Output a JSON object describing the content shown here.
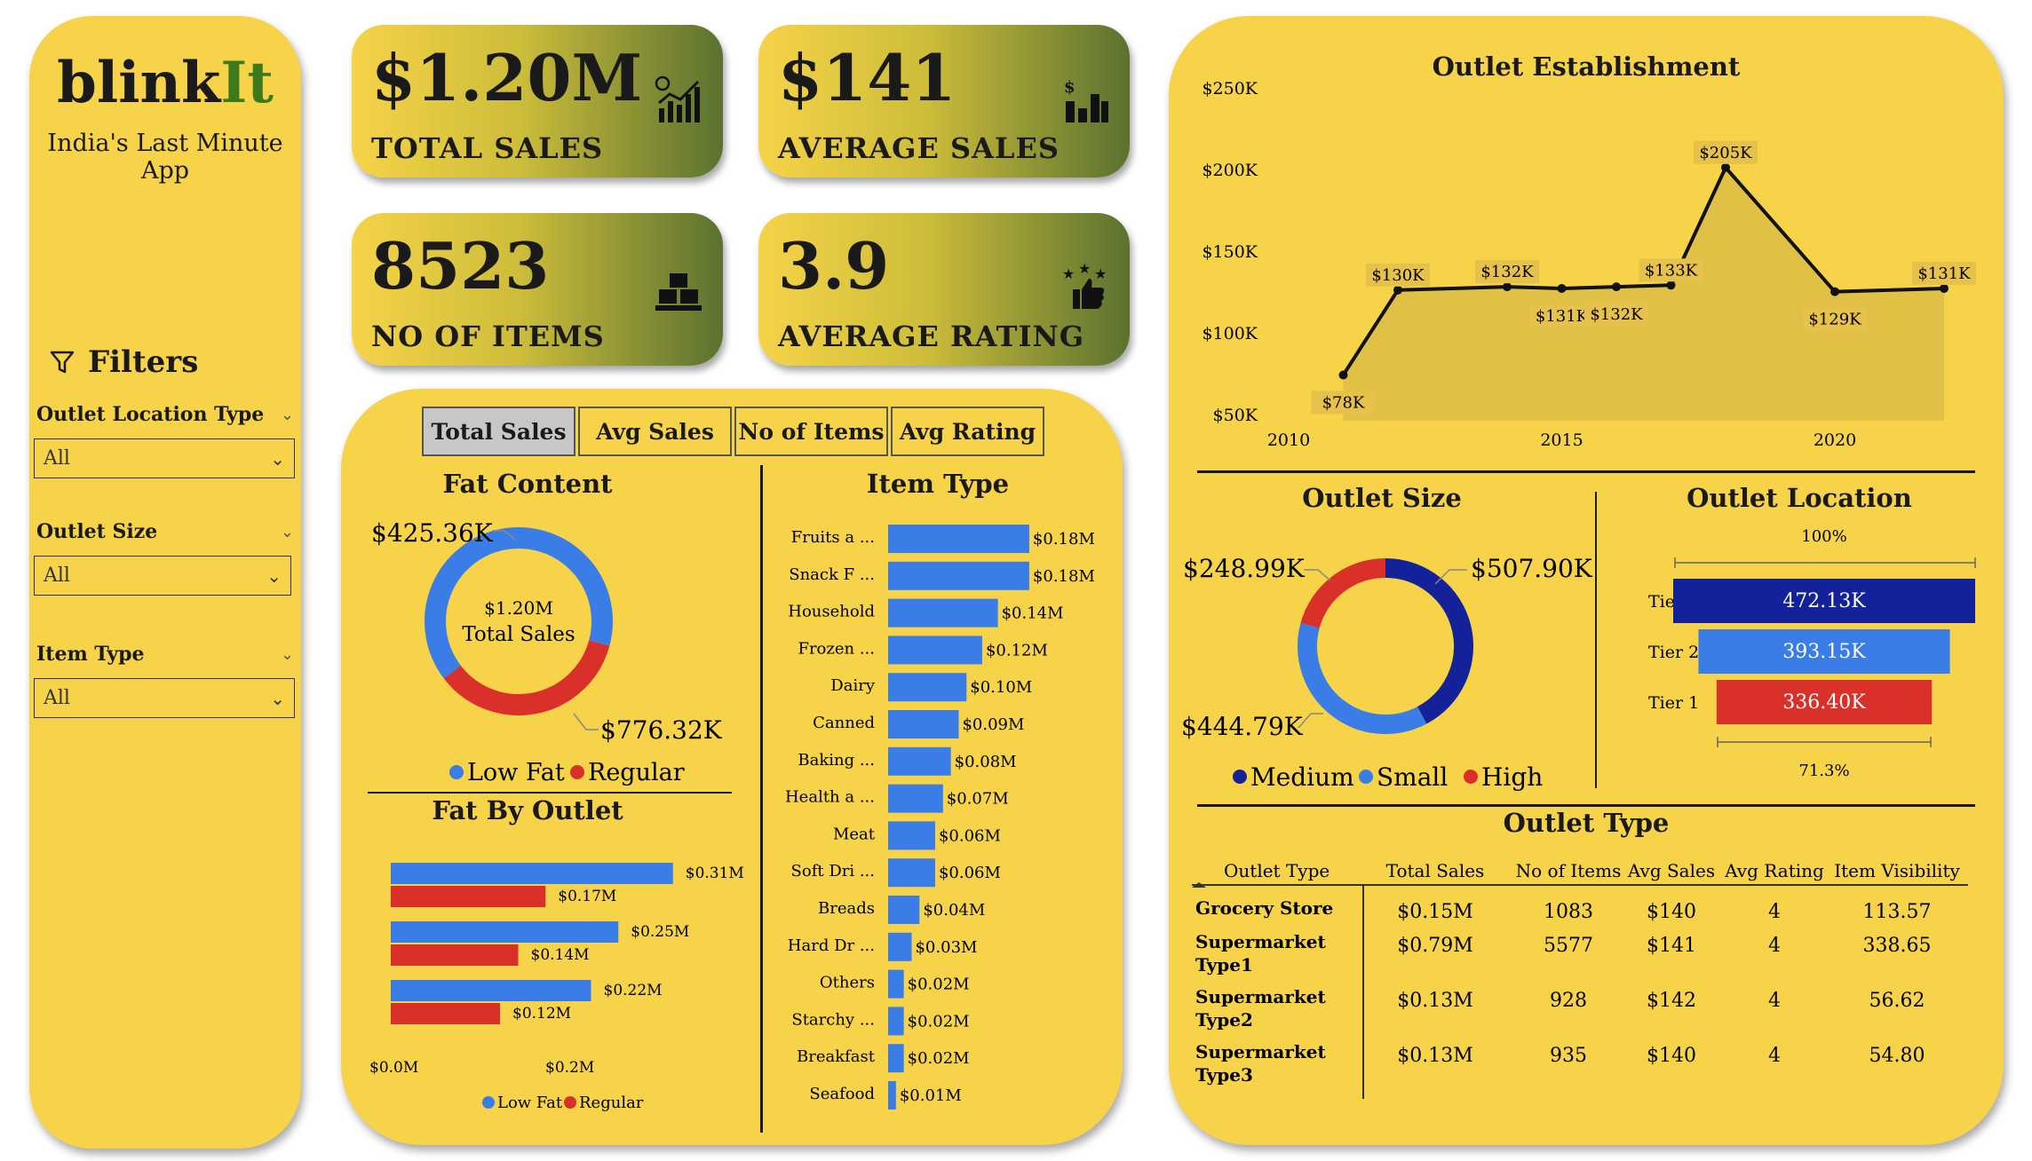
{
  "brand": {
    "name_main": "blink",
    "name_accent": "It",
    "tagline": "India's Last Minute App"
  },
  "filters": {
    "title": "Filters",
    "items": [
      {
        "label": "Outlet Location Type",
        "value": "All"
      },
      {
        "label": "Outlet Size",
        "value": "All"
      },
      {
        "label": "Item Type",
        "value": "All"
      }
    ]
  },
  "kpis": [
    {
      "value": "$1.20M",
      "label": "TOTAL SALES",
      "icon": "sales-chart-icon"
    },
    {
      "value": "$141",
      "label": "AVERAGE SALES",
      "icon": "bar-chart-dollar-icon"
    },
    {
      "value": "8523",
      "label": "NO OF ITEMS",
      "icon": "boxes-icon"
    },
    {
      "value": "3.9",
      "label": "AVERAGE RATING",
      "icon": "rating-thumb-icon"
    }
  ],
  "tabs": [
    "Total Sales",
    "Avg Sales",
    "No of Items",
    "Avg Rating"
  ],
  "active_tab": "Total Sales",
  "colors": {
    "panel": "#f6d348",
    "blue": "#3a7de6",
    "red": "#d9302a",
    "navy": "#14229a",
    "green": "#3d7a1c"
  },
  "chart_data": [
    {
      "id": "fat-content",
      "type": "pie",
      "title": "Fat Content",
      "center_value": "$1.20M",
      "center_label": "Total Sales",
      "slices": [
        {
          "name": "Low Fat",
          "value": 776.32,
          "label": "$776.32K"
        },
        {
          "name": "Regular",
          "value": 425.36,
          "label": "$425.36K"
        }
      ],
      "legend": [
        "Low Fat",
        "Regular"
      ]
    },
    {
      "id": "fat-by-outlet",
      "type": "bar",
      "title": "Fat By Outlet",
      "orientation": "horizontal",
      "series": [
        {
          "name": "Low Fat",
          "values": [
            0.31,
            0.25,
            0.22
          ],
          "labels": [
            "$0.31M",
            "$0.25M",
            "$0.22M"
          ]
        },
        {
          "name": "Regular",
          "values": [
            0.17,
            0.14,
            0.12
          ],
          "labels": [
            "$0.17M",
            "$0.14M",
            "$0.12M"
          ]
        }
      ],
      "ticks": [
        "$0.0M",
        "$0.2M"
      ],
      "xlim": [
        0,
        0.4
      ]
    },
    {
      "id": "item-type",
      "type": "bar",
      "title": "Item Type",
      "orientation": "horizontal",
      "categories": [
        "Fruits a ...",
        "Snack F ...",
        "Household",
        "Frozen ...",
        "Dairy",
        "Canned",
        "Baking ...",
        "Health a ...",
        "Meat",
        "Soft Dri ...",
        "Breads",
        "Hard Dr ...",
        "Others",
        "Starchy ...",
        "Breakfast",
        "Seafood"
      ],
      "values": [
        0.18,
        0.18,
        0.14,
        0.12,
        0.1,
        0.09,
        0.08,
        0.07,
        0.06,
        0.06,
        0.04,
        0.03,
        0.02,
        0.02,
        0.02,
        0.01
      ],
      "labels": [
        "$0.18M",
        "$0.18M",
        "$0.14M",
        "$0.12M",
        "$0.10M",
        "$0.09M",
        "$0.08M",
        "$0.07M",
        "$0.06M",
        "$0.06M",
        "$0.04M",
        "$0.03M",
        "$0.02M",
        "$0.02M",
        "$0.02M",
        "$0.01M"
      ],
      "xlim": [
        0,
        0.2
      ]
    },
    {
      "id": "outlet-establishment",
      "type": "area",
      "title": "Outlet Establishment",
      "x": [
        2011,
        2012,
        2014,
        2015,
        2016,
        2017,
        2018,
        2020,
        2022
      ],
      "y": [
        78,
        130,
        132,
        131,
        132,
        133,
        205,
        129,
        131
      ],
      "labels": [
        "$78K",
        "$130K",
        "$132K",
        "$131K",
        "$132K",
        "$133K",
        "$205K",
        "$129K",
        "$131K"
      ],
      "yticks": [
        "$250K",
        "$200K",
        "$150K",
        "$100K",
        "$50K"
      ],
      "ylim": [
        50,
        250
      ],
      "xticks": [
        "2010",
        "2015",
        "2020"
      ],
      "xlim": [
        2010,
        2023
      ]
    },
    {
      "id": "outlet-size",
      "type": "pie",
      "title": "Outlet Size",
      "slices": [
        {
          "name": "Medium",
          "value": 507.9,
          "label": "$507.90K"
        },
        {
          "name": "Small",
          "value": 444.79,
          "label": "$444.79K"
        },
        {
          "name": "High",
          "value": 248.99,
          "label": "$248.99K"
        }
      ],
      "legend": [
        "Medium",
        "Small",
        "High"
      ]
    },
    {
      "id": "outlet-location",
      "type": "bar",
      "title": "Outlet Location",
      "categories": [
        "Tier 3",
        "Tier 2",
        "Tier 1"
      ],
      "values": [
        472.13,
        393.15,
        336.4
      ],
      "labels": [
        "472.13K",
        "393.15K",
        "336.40K"
      ],
      "top_pct": "100%",
      "bottom_pct": "71.3%"
    },
    {
      "id": "outlet-type",
      "type": "table",
      "title": "Outlet Type",
      "columns": [
        "Outlet Type",
        "Total Sales",
        "No of Items",
        "Avg Sales",
        "Avg Rating",
        "Item Visibility"
      ],
      "rows": [
        [
          "Grocery Store",
          "$0.15M",
          "1083",
          "$140",
          "4",
          "113.57"
        ],
        [
          "Supermarket Type1",
          "$0.79M",
          "5577",
          "$141",
          "4",
          "338.65"
        ],
        [
          "Supermarket Type2",
          "$0.13M",
          "928",
          "$142",
          "4",
          "56.62"
        ],
        [
          "Supermarket Type3",
          "$0.13M",
          "935",
          "$140",
          "4",
          "54.80"
        ]
      ]
    }
  ]
}
